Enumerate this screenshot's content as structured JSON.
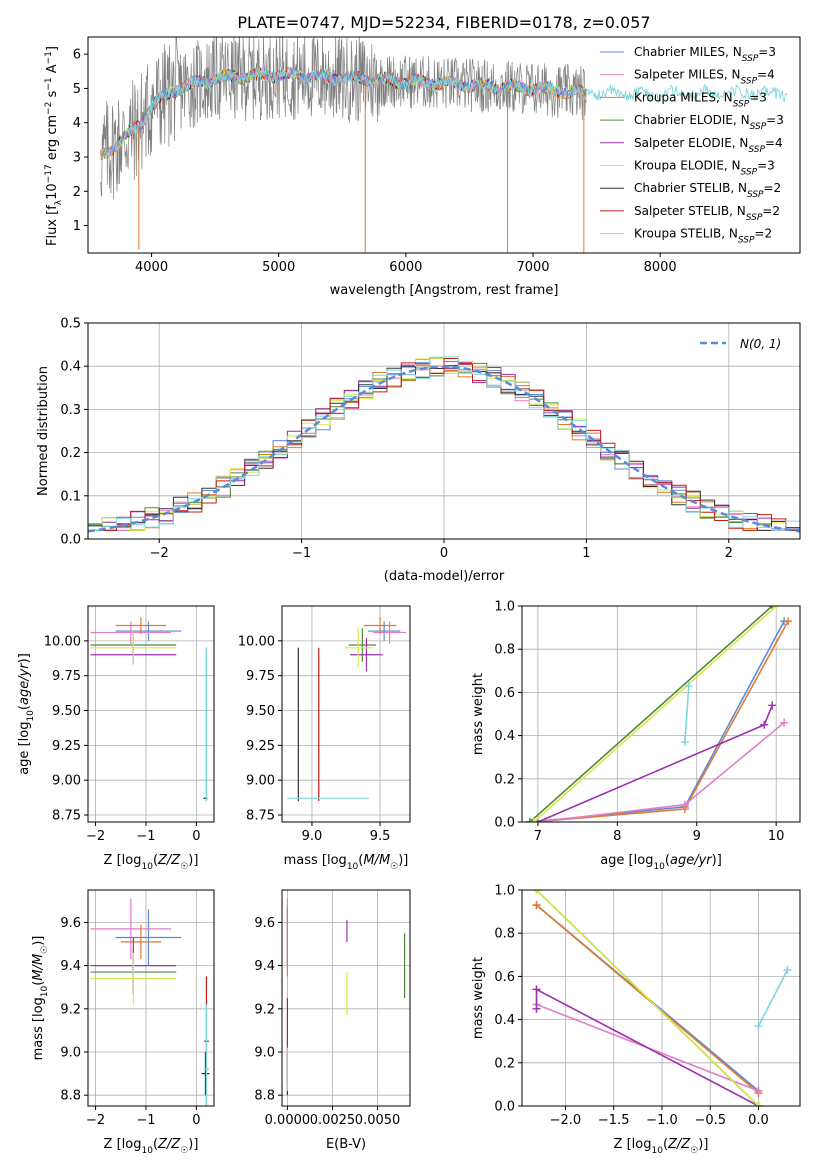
{
  "colors": {
    "Chabrier MILES": "#5b8bd8",
    "Salpeter MILES": "#e17fc6",
    "Kroupa MILES": "#e07b2f",
    "Chabrier ELODIE": "#4f8a3a",
    "Salpeter ELODIE": "#9b2fae",
    "Kroupa ELODIE": "#d8e84a",
    "Chabrier STELIB": "#333333",
    "Salpeter STELIB": "#c21d14",
    "Kroupa STELIB": "#7fd6db",
    "observed": "#808080",
    "normal": "#5b8bd8"
  },
  "chart_data": [
    {
      "id": "spectrum",
      "type": "line",
      "title": "PLATE=0747, MJD=52234, FIBERID=0178, z=0.057",
      "xlabel": "wavelength [Angstrom, rest frame]",
      "ylabel": "Flux [fλ10⁻¹⁷ erg cm⁻² s⁻¹ A⁻¹]",
      "xlim": [
        3500,
        9100
      ],
      "ylim": [
        0.2,
        6.5
      ],
      "xticks": [
        4000,
        5000,
        6000,
        7000,
        8000
      ],
      "yticks": [
        1,
        2,
        3,
        4,
        5,
        6
      ],
      "legend_position": "right",
      "legend": [
        {
          "name": "Chabrier MILES",
          "nssp": "3"
        },
        {
          "name": "Salpeter MILES",
          "nssp": "4"
        },
        {
          "name": "Kroupa MILES",
          "nssp": "3"
        },
        {
          "name": "Chabrier ELODIE",
          "nssp": "3"
        },
        {
          "name": "Salpeter ELODIE",
          "nssp": "4"
        },
        {
          "name": "Kroupa ELODIE",
          "nssp": "3"
        },
        {
          "name": "Chabrier STELIB",
          "nssp": "2"
        },
        {
          "name": "Salpeter STELIB",
          "nssp": "2"
        },
        {
          "name": "Kroupa STELIB",
          "nssp": "2"
        }
      ],
      "model_continuum": [
        [
          3600,
          3.0
        ],
        [
          3700,
          3.3
        ],
        [
          3800,
          3.6
        ],
        [
          3900,
          3.9
        ],
        [
          4000,
          4.5
        ],
        [
          4200,
          5.0
        ],
        [
          4500,
          5.3
        ],
        [
          5000,
          5.4
        ],
        [
          5500,
          5.3
        ],
        [
          6000,
          5.2
        ],
        [
          6500,
          5.1
        ],
        [
          7000,
          5.0
        ],
        [
          7300,
          4.9
        ],
        [
          7500,
          4.85
        ]
      ]
    },
    {
      "id": "residuals",
      "type": "step",
      "xlabel": "(data-model)/error",
      "ylabel": "Normed distribution",
      "xlim": [
        -2.5,
        2.5
      ],
      "ylim": [
        0,
        0.5
      ],
      "xticks": [
        -2,
        -1,
        0,
        1,
        2
      ],
      "yticks": [
        0.0,
        0.1,
        0.2,
        0.3,
        0.4,
        0.5
      ],
      "legend_position": "top-right",
      "normal_label": "N(0, 1)",
      "bin_width": 0.1
    },
    {
      "id": "age-vs-Z",
      "type": "errorbar",
      "xlabel": "Z [log10(Z/Z☉)]",
      "ylabel": "age  [log10(age/yr)]",
      "xlim": [
        -2.15,
        0.35
      ],
      "ylim": [
        8.7,
        10.25
      ],
      "xticks": [
        -2,
        -1,
        0
      ],
      "yticks": [
        8.75,
        9.0,
        9.25,
        9.5,
        9.75,
        10.0
      ],
      "points": [
        {
          "model": "Chabrier MILES",
          "x": -0.95,
          "y": 10.07,
          "xerr": 0.65,
          "yerr": 0.07
        },
        {
          "model": "Salpeter MILES",
          "x": -1.3,
          "y": 10.06,
          "xerr": 0.8,
          "yerr": 0.08
        },
        {
          "model": "Kroupa MILES",
          "x": -1.1,
          "y": 10.11,
          "xerr": 0.5,
          "yerr": 0.06
        },
        {
          "model": "Chabrier ELODIE",
          "x": -1.25,
          "y": 9.97,
          "xerr": 0.85,
          "yerr": 0.1
        },
        {
          "model": "Salpeter ELODIE",
          "x": -1.25,
          "y": 9.9,
          "xerr": 0.85,
          "yerr": 0.07
        },
        {
          "model": "Kroupa ELODIE",
          "x": -1.25,
          "y": 9.95,
          "xerr": 0.85,
          "yerr": 0.12
        },
        {
          "model": "Chabrier STELIB",
          "x": 0.18,
          "y": 8.87,
          "xerr": 0.04,
          "yerr": 0.0
        },
        {
          "model": "Salpeter STELIB",
          "x": 0.2,
          "y": 9.4,
          "xerr": 0.0,
          "yerr": 0.55
        },
        {
          "model": "Kroupa STELIB",
          "x": 0.2,
          "y": 9.4,
          "xerr": 0.0,
          "yerr": 0.55
        }
      ]
    },
    {
      "id": "age-vs-mass",
      "type": "errorbar",
      "xlabel": "mass [log10(M/M☉)]",
      "ylabel": "",
      "xlim": [
        8.78,
        9.72
      ],
      "ylim": [
        8.7,
        10.25
      ],
      "xticks": [
        9.0,
        9.5
      ],
      "yticks": [
        8.75,
        9.0,
        9.25,
        9.5,
        9.75,
        10.0
      ],
      "points": [
        {
          "model": "Chabrier MILES",
          "x": 9.53,
          "y": 10.07,
          "xerr": 0.12,
          "yerr": 0.07
        },
        {
          "model": "Salpeter MILES",
          "x": 9.57,
          "y": 10.06,
          "xerr": 0.12,
          "yerr": 0.08
        },
        {
          "model": "Kroupa MILES",
          "x": 9.5,
          "y": 10.11,
          "xerr": 0.12,
          "yerr": 0.06
        },
        {
          "model": "Chabrier ELODIE",
          "x": 9.37,
          "y": 9.97,
          "xerr": 0.1,
          "yerr": 0.12
        },
        {
          "model": "Salpeter ELODIE",
          "x": 9.4,
          "y": 9.9,
          "xerr": 0.12,
          "yerr": 0.12
        },
        {
          "model": "Kroupa ELODIE",
          "x": 9.34,
          "y": 9.95,
          "xerr": 0.1,
          "yerr": 0.14
        },
        {
          "model": "Chabrier STELIB",
          "x": 8.9,
          "y": 9.4,
          "xerr": 0.0,
          "yerr": 0.55
        },
        {
          "model": "Salpeter STELIB",
          "x": 9.05,
          "y": 9.4,
          "xerr": 0.0,
          "yerr": 0.55
        },
        {
          "model": "Kroupa STELIB",
          "x": 9.12,
          "y": 8.87,
          "xerr": 0.3,
          "yerr": 0.0
        }
      ]
    },
    {
      "id": "weight-vs-age",
      "type": "line",
      "xlabel": "age  [log10(age/yr)]",
      "ylabel": "mass weight",
      "xlim": [
        6.8,
        10.3
      ],
      "ylim": [
        0,
        1
      ],
      "xticks": [
        7,
        8,
        9,
        10
      ],
      "yticks": [
        0.0,
        0.2,
        0.4,
        0.6,
        0.8,
        1.0
      ],
      "series": [
        {
          "model": "Chabrier MILES",
          "x": [
            6.9,
            8.85,
            10.1
          ],
          "y": [
            0.0,
            0.07,
            0.93
          ]
        },
        {
          "model": "Kroupa MILES",
          "x": [
            6.95,
            8.85,
            10.15
          ],
          "y": [
            0.0,
            0.06,
            0.93
          ]
        },
        {
          "model": "Salpeter MILES",
          "x": [
            7.0,
            8.85,
            10.1
          ],
          "y": [
            0.0,
            0.08,
            0.46
          ]
        },
        {
          "model": "Salpeter ELODIE",
          "x": [
            7.0,
            9.85,
            9.95
          ],
          "y": [
            0.0,
            0.45,
            0.54
          ]
        },
        {
          "model": "Chabrier ELODIE",
          "x": [
            6.9,
            9.95
          ],
          "y": [
            0.0,
            1.0
          ]
        },
        {
          "model": "Kroupa ELODIE",
          "x": [
            6.95,
            10.0
          ],
          "y": [
            0.0,
            1.0
          ]
        },
        {
          "model": "Kroupa STELIB",
          "x": [
            8.85,
            8.9
          ],
          "y": [
            0.37,
            0.63
          ]
        }
      ]
    },
    {
      "id": "mass-vs-Z",
      "type": "errorbar",
      "xlabel": "Z [log10(Z/Z☉)]",
      "ylabel": "mass [log10(M/M☉)]",
      "xlim": [
        -2.15,
        0.35
      ],
      "ylim": [
        8.75,
        9.75
      ],
      "xticks": [
        -2,
        -1,
        0
      ],
      "yticks": [
        8.8,
        9.0,
        9.2,
        9.4,
        9.6
      ],
      "points": [
        {
          "model": "Chabrier MILES",
          "x": -0.95,
          "y": 9.53,
          "xerr": 0.65,
          "yerr": 0.13
        },
        {
          "model": "Salpeter MILES",
          "x": -1.3,
          "y": 9.57,
          "xerr": 0.8,
          "yerr": 0.14
        },
        {
          "model": "Kroupa MILES",
          "x": -1.1,
          "y": 9.51,
          "xerr": 0.4,
          "yerr": 0.08
        },
        {
          "model": "Chabrier ELODIE",
          "x": -1.25,
          "y": 9.37,
          "xerr": 0.85,
          "yerr": 0.1
        },
        {
          "model": "Salpeter ELODIE",
          "x": -1.25,
          "y": 9.4,
          "xerr": 0.85,
          "yerr": 0.13
        },
        {
          "model": "Kroupa ELODIE",
          "x": -1.25,
          "y": 9.34,
          "xerr": 0.85,
          "yerr": 0.12
        },
        {
          "model": "Chabrier STELIB",
          "x": 0.18,
          "y": 8.9,
          "xerr": 0.08,
          "yerr": 0.1
        },
        {
          "model": "Salpeter STELIB",
          "x": 0.2,
          "y": 9.05,
          "xerr": 0.05,
          "yerr": 0.3
        },
        {
          "model": "Kroupa STELIB",
          "x": 0.2,
          "y": 8.92,
          "xerr": 0.05,
          "yerr": 0.3
        }
      ]
    },
    {
      "id": "mass-vs-ebv",
      "type": "errorbar",
      "xlabel": "E(B-V)",
      "ylabel": "",
      "xlim": [
        -0.0003,
        0.0068
      ],
      "ylim": [
        8.75,
        9.75
      ],
      "xticks": [
        0.0,
        0.0025,
        0.005
      ],
      "xtick_labels": [
        "0.0000",
        "0.0025",
        "0.0050"
      ],
      "yticks": [
        8.8,
        9.0,
        9.2,
        9.4,
        9.6
      ],
      "points": [
        {
          "model": "Chabrier MILES",
          "x": 0.0,
          "y": 9.53,
          "xerr": 0.0,
          "yerr": 0.13
        },
        {
          "model": "Salpeter MILES",
          "x": 0.0,
          "y": 9.57,
          "xerr": 0.0,
          "yerr": 0.14
        },
        {
          "model": "Kroupa MILES",
          "x": 0.0,
          "y": 9.51,
          "xerr": 0.0,
          "yerr": 0.16
        },
        {
          "model": "Chabrier ELODIE",
          "x": 0.0065,
          "y": 9.4,
          "xerr": 0.0,
          "yerr": 0.15
        },
        {
          "model": "Salpeter ELODIE",
          "x": 0.0033,
          "y": 9.56,
          "xerr": 0.0,
          "yerr": 0.05
        },
        {
          "model": "Kroupa ELODIE",
          "x": 0.0033,
          "y": 9.27,
          "xerr": 0.0,
          "yerr": 0.1
        },
        {
          "model": "Chabrier STELIB",
          "x": 0.0,
          "y": 8.9,
          "xerr": 0.0,
          "yerr": 0.1
        },
        {
          "model": "Salpeter STELIB",
          "x": 0.0,
          "y": 9.05,
          "xerr": 0.0,
          "yerr": 0.2
        },
        {
          "model": "Kroupa STELIB",
          "x": 0.0,
          "y": 8.92,
          "xerr": 0.0,
          "yerr": 0.1
        }
      ]
    },
    {
      "id": "weight-vs-Z",
      "type": "line",
      "xlabel": "Z [log10(Z/Z☉)]",
      "ylabel": "mass weight",
      "xlim": [
        -2.45,
        0.43
      ],
      "ylim": [
        0,
        1
      ],
      "xticks": [
        -2.0,
        -1.5,
        -1.0,
        -0.5,
        0.0
      ],
      "yticks": [
        0.0,
        0.2,
        0.4,
        0.6,
        0.8,
        1.0
      ],
      "series": [
        {
          "model": "Chabrier MILES",
          "x": [
            -2.3,
            0.0
          ],
          "y": [
            0.93,
            0.07
          ]
        },
        {
          "model": "Kroupa MILES",
          "x": [
            -2.3,
            0.0
          ],
          "y": [
            0.93,
            0.06
          ]
        },
        {
          "model": "Salpeter MILES",
          "x": [
            -2.3,
            0.0
          ],
          "y": [
            0.47,
            0.07
          ]
        },
        {
          "model": "Salpeter ELODIE",
          "x": [
            -2.3,
            -2.3,
            0.0
          ],
          "y": [
            0.45,
            0.54,
            0.0
          ]
        },
        {
          "model": "Chabrier ELODIE",
          "x": [
            -2.3,
            0.0
          ],
          "y": [
            1.0,
            0.0
          ]
        },
        {
          "model": "Kroupa ELODIE",
          "x": [
            -2.3,
            0.0
          ],
          "y": [
            1.0,
            0.0
          ]
        },
        {
          "model": "Kroupa STELIB",
          "x": [
            0.0,
            0.3
          ],
          "y": [
            0.37,
            0.63
          ]
        }
      ]
    }
  ]
}
